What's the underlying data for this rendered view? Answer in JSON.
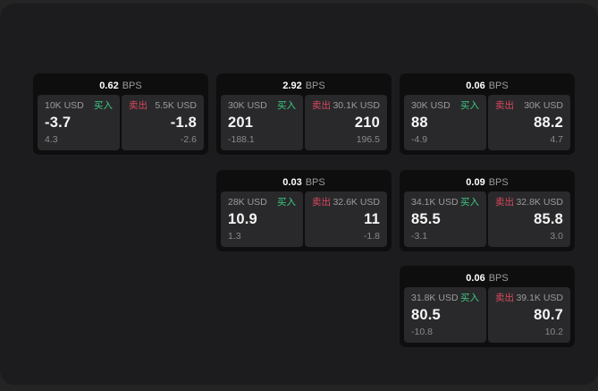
{
  "labels": {
    "bps_unit": "BPS",
    "buy": "买入",
    "sell": "卖出"
  },
  "colors": {
    "outer_background": "#242424",
    "panel_background": "#1c1c1e",
    "card_background": "#0e0e0e",
    "tile_background": "#29292b",
    "value_text": "#f5f5f5",
    "label_text": "#9b9b9b",
    "muted_text": "#8a8a8a",
    "buy_green": "#3dc983",
    "sell_red": "#d8495f"
  },
  "cards": [
    {
      "row": 1,
      "col": 1,
      "bps": "0.62",
      "buy": {
        "size": "10K USD",
        "value": "-3.7",
        "delta": "4.3"
      },
      "sell": {
        "size": "5.5K USD",
        "value": "-1.8",
        "delta": "-2.6"
      }
    },
    {
      "row": 1,
      "col": 2,
      "bps": "2.92",
      "buy": {
        "size": "30K USD",
        "value": "201",
        "delta": "-188.1"
      },
      "sell": {
        "size": "30.1K USD",
        "value": "210",
        "delta": "196.5"
      }
    },
    {
      "row": 1,
      "col": 3,
      "bps": "0.06",
      "buy": {
        "size": "30K USD",
        "value": "88",
        "delta": "-4.9"
      },
      "sell": {
        "size": "30K USD",
        "value": "88.2",
        "delta": "4.7"
      }
    },
    {
      "row": 2,
      "col": 2,
      "bps": "0.03",
      "buy": {
        "size": "28K USD",
        "value": "10.9",
        "delta": "1.3"
      },
      "sell": {
        "size": "32.6K USD",
        "value": "11",
        "delta": "-1.8"
      }
    },
    {
      "row": 2,
      "col": 3,
      "bps": "0.09",
      "buy": {
        "size": "34.1K USD",
        "value": "85.5",
        "delta": "-3.1"
      },
      "sell": {
        "size": "32.8K USD",
        "value": "85.8",
        "delta": "3.0"
      }
    },
    {
      "row": 3,
      "col": 3,
      "bps": "0.06",
      "buy": {
        "size": "31.8K USD",
        "value": "80.5",
        "delta": "-10.8"
      },
      "sell": {
        "size": "39.1K USD",
        "value": "80.7",
        "delta": "10.2"
      }
    }
  ]
}
